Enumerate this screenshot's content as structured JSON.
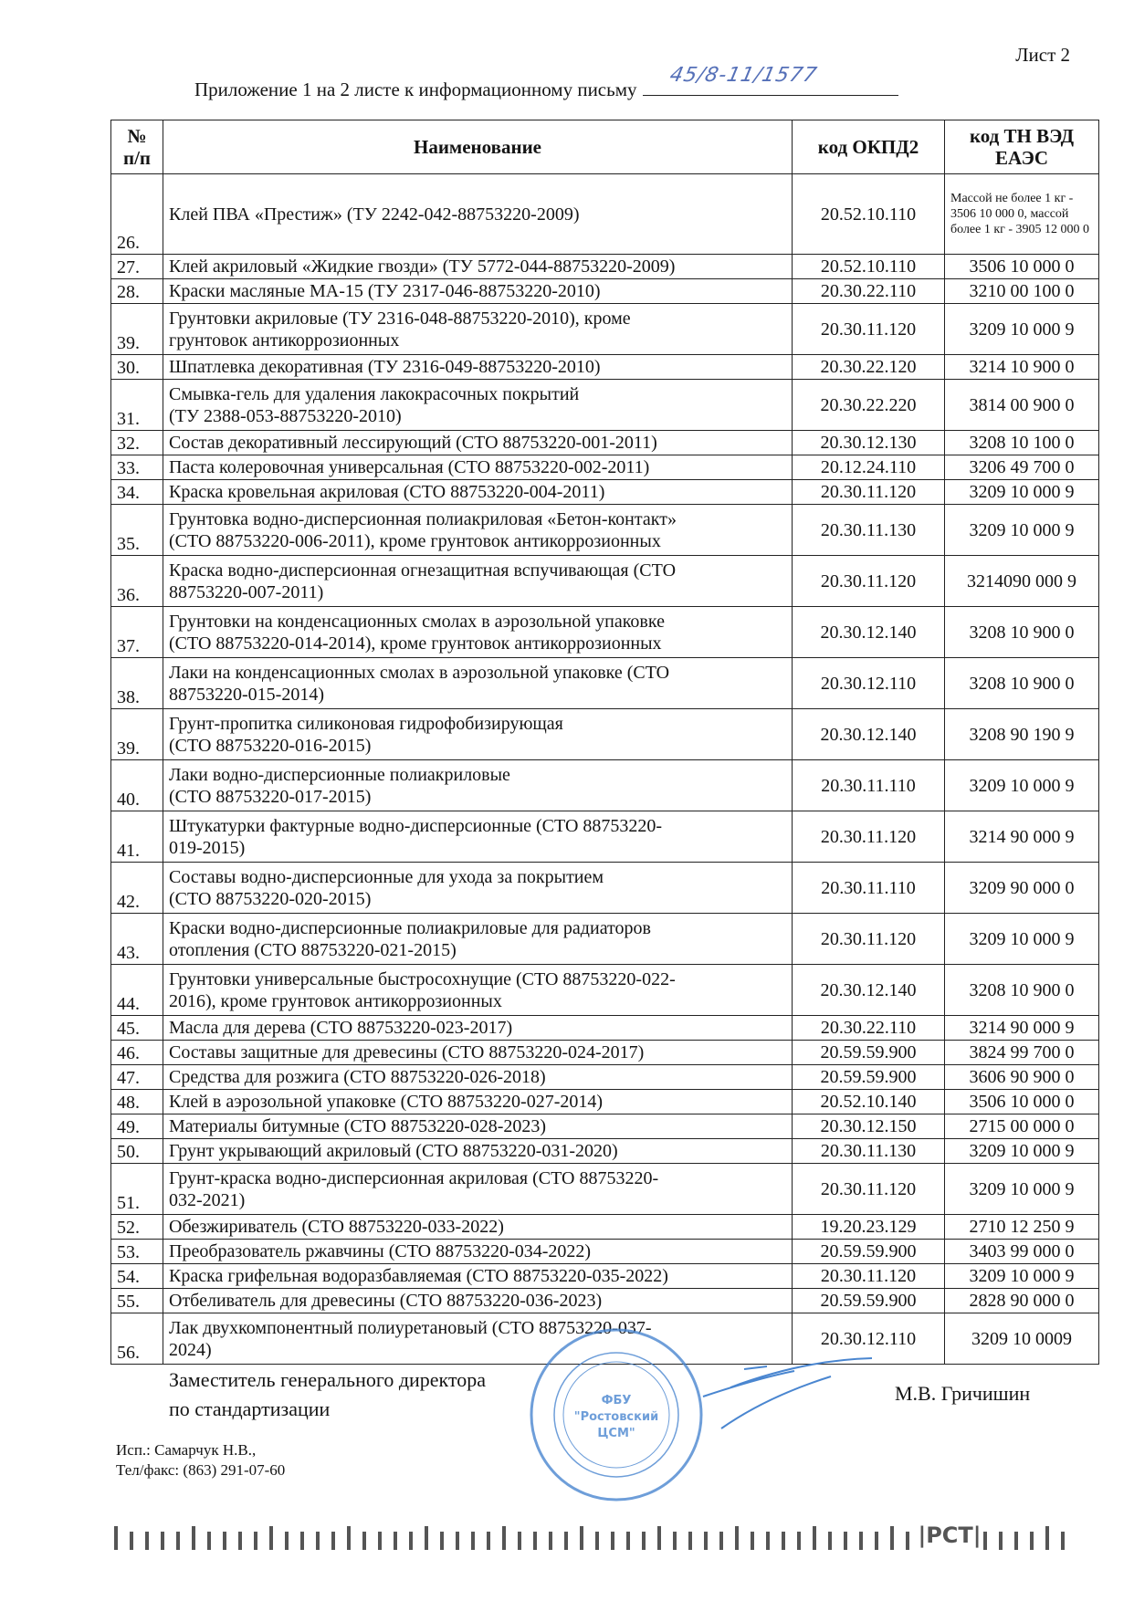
{
  "header": {
    "sheet": "Лист 2",
    "title": "Приложение 1 на 2 листе к информационному письму",
    "letter_number_handwritten": "45/8-11/1577"
  },
  "table": {
    "columns": [
      "№ п/п",
      "Наименование",
      "код ОКПД2",
      "код ТН ВЭД ЕАЭС"
    ],
    "rows": [
      {
        "num": "26.",
        "name": "Клей ПВА «Престиж» (ТУ 2242-042-88753220-2009)",
        "okpd": "20.52.10.110",
        "tn": "Массой не более 1 кг - 3506 10 000 0, массой более 1 кг - 3905 12 000 0",
        "h": 3
      },
      {
        "num": "27.",
        "name": "Клей акриловый «Жидкие гвозди» (ТУ 5772-044-88753220-2009)",
        "okpd": "20.52.10.110",
        "tn": "3506 10 000 0",
        "h": 1
      },
      {
        "num": "28.",
        "name": "Краски масляные МА-15 (ТУ 2317-046-88753220-2010)",
        "okpd": "20.30.22.110",
        "tn": "3210 00 100 0",
        "h": 1
      },
      {
        "num": "39.",
        "name": "Грунтовки акриловые (ТУ 2316-048-88753220-2010), кроме\nгрунтовок антикоррозионных",
        "okpd": "20.30.11.120",
        "tn": "3209 10 000 9",
        "h": 2
      },
      {
        "num": "30.",
        "name": "Шпатлевка декоративная  (ТУ 2316-049-88753220-2010)",
        "okpd": "20.30.22.120",
        "tn": "3214 10 900 0",
        "h": 1
      },
      {
        "num": "31.",
        "name": "Смывка-гель для удаления лакокрасочных покрытий\n(ТУ 2388-053-88753220-2010)",
        "okpd": "20.30.22.220",
        "tn": "3814 00 900 0",
        "h": 2
      },
      {
        "num": "32.",
        "name": "Состав декоративный лессирующий (СТО 88753220-001-2011)",
        "okpd": "20.30.12.130",
        "tn": "3208 10 100 0",
        "h": 1
      },
      {
        "num": "33.",
        "name": "Паста колеровочная универсальная (СТО 88753220-002-2011)",
        "okpd": "20.12.24.110",
        "tn": "3206 49 700 0",
        "h": 1
      },
      {
        "num": "34.",
        "name": "Краска кровельная акриловая (СТО 88753220-004-2011)",
        "okpd": "20.30.11.120",
        "tn": "3209 10 000 9",
        "h": 1
      },
      {
        "num": "35.",
        "name": "Грунтовка водно-дисперсионная полиакриловая «Бетон-контакт»\n(СТО 88753220-006-2011), кроме грунтовок антикоррозионных",
        "okpd": "20.30.11.130",
        "tn": "3209 10 000 9",
        "h": 2
      },
      {
        "num": "36.",
        "name": "Краска водно-дисперсионная огнезащитная вспучивающая (СТО\n88753220-007-2011)",
        "okpd": "20.30.11.120",
        "tn": "3214090 000 9",
        "h": 2
      },
      {
        "num": "37.",
        "name": "Грунтовки на конденсационных смолах в аэрозольной упаковке\n(СТО 88753220-014-2014), кроме грунтовок антикоррозионных",
        "okpd": "20.30.12.140",
        "tn": "3208 10 900 0",
        "h": 2
      },
      {
        "num": "38.",
        "name": "Лаки на конденсационных смолах в аэрозольной упаковке (СТО\n88753220-015-2014)",
        "okpd": "20.30.12.110",
        "tn": "3208 10 900 0",
        "h": 2
      },
      {
        "num": "39.",
        "name": "Грунт-пропитка силиконовая гидрофобизирующая\n(СТО 88753220-016-2015)",
        "okpd": "20.30.12.140",
        "tn": "3208 90 190 9",
        "h": 2
      },
      {
        "num": "40.",
        "name": "Лаки водно-дисперсионные полиакриловые\n(СТО 88753220-017-2015)",
        "okpd": "20.30.11.110",
        "tn": "3209 10 000 9",
        "h": 2
      },
      {
        "num": "41.",
        "name": "Штукатурки фактурные водно-дисперсионные (СТО 88753220-\n019-2015)",
        "okpd": "20.30.11.120",
        "tn": "3214 90 000 9",
        "h": 2
      },
      {
        "num": "42.",
        "name": "Составы водно-дисперсионные для ухода за покрытием\n(СТО 88753220-020-2015)",
        "okpd": "20.30.11.110",
        "tn": "3209 90 000 0",
        "h": 2
      },
      {
        "num": "43.",
        "name": "Краски водно-дисперсионные полиакриловые для радиаторов\nотопления (СТО 88753220-021-2015)",
        "okpd": "20.30.11.120",
        "tn": "3209 10 000 9",
        "h": 2
      },
      {
        "num": "44.",
        "name": "Грунтовки универсальные быстросохнущие (СТО 88753220-022-\n2016), кроме грунтовок антикоррозионных",
        "okpd": "20.30.12.140",
        "tn": "3208 10 900 0",
        "h": 2
      },
      {
        "num": "45.",
        "name": "Масла для дерева (СТО 88753220-023-2017)",
        "okpd": "20.30.22.110",
        "tn": "3214 90 000 9",
        "h": 1
      },
      {
        "num": "46.",
        "name": "Составы защитные для древесины (СТО 88753220-024-2017)",
        "okpd": "20.59.59.900",
        "tn": "3824 99 700 0",
        "h": 1
      },
      {
        "num": "47.",
        "name": "Средства для розжига (СТО 88753220-026-2018)",
        "okpd": "20.59.59.900",
        "tn": "3606 90 900 0",
        "h": 1
      },
      {
        "num": "48.",
        "name": "Клей в аэрозольной упаковке (СТО 88753220-027-2014)",
        "okpd": "20.52.10.140",
        "tn": "3506 10 000 0",
        "h": 1
      },
      {
        "num": "49.",
        "name": "Материалы битумные (СТО 88753220-028-2023)",
        "okpd": "20.30.12.150",
        "tn": "2715 00 000 0",
        "h": 1
      },
      {
        "num": "50.",
        "name": "Грунт укрывающий акриловый (СТО 88753220-031-2020)",
        "okpd": "20.30.11.130",
        "tn": "3209 10 000 9",
        "h": 1
      },
      {
        "num": "51.",
        "name": "Грунт-краска водно-дисперсионная акриловая (СТО 88753220-\n032-2021)",
        "okpd": "20.30.11.120",
        "tn": "3209 10 000 9",
        "h": 2
      },
      {
        "num": "52.",
        "name": "Обезжириватель (СТО 88753220-033-2022)",
        "okpd": "19.20.23.129",
        "tn": "2710 12 250 9",
        "h": 1
      },
      {
        "num": "53.",
        "name": "Преобразователь ржавчины (СТО 88753220-034-2022)",
        "okpd": "20.59.59.900",
        "tn": "3403 99 000 0",
        "h": 1
      },
      {
        "num": "54.",
        "name": "Краска грифельная водоразбавляемая (СТО 88753220-035-2022)",
        "okpd": "20.30.11.120",
        "tn": "3209 10 000 9",
        "h": 1
      },
      {
        "num": "55.",
        "name": "Отбеливатель для древесины (СТО 88753220-036-2023)",
        "okpd": "20.59.59.900",
        "tn": "2828 90 000 0",
        "h": 1
      },
      {
        "num": "56.",
        "name": "Лак двухкомпонентный полиуретановый (СТО 88753220-037-\n2024)",
        "okpd": "20.30.12.110",
        "tn": "3209 10 0009",
        "h": 2
      }
    ]
  },
  "footer": {
    "position": "Заместитель генерального директора\nпо стандартизации",
    "signatory": "М.В. Гричишин",
    "executor": "Исп.: Самарчук Н.В.,\nТел/факс: (863) 291-07-60",
    "stamp_text": "ФБУ \"Ростовский ЦСМ\"",
    "logo": "РСТ"
  },
  "colors": {
    "ink": "#141414",
    "stamp": "#4a86d0",
    "handwriting": "#5570b8"
  }
}
